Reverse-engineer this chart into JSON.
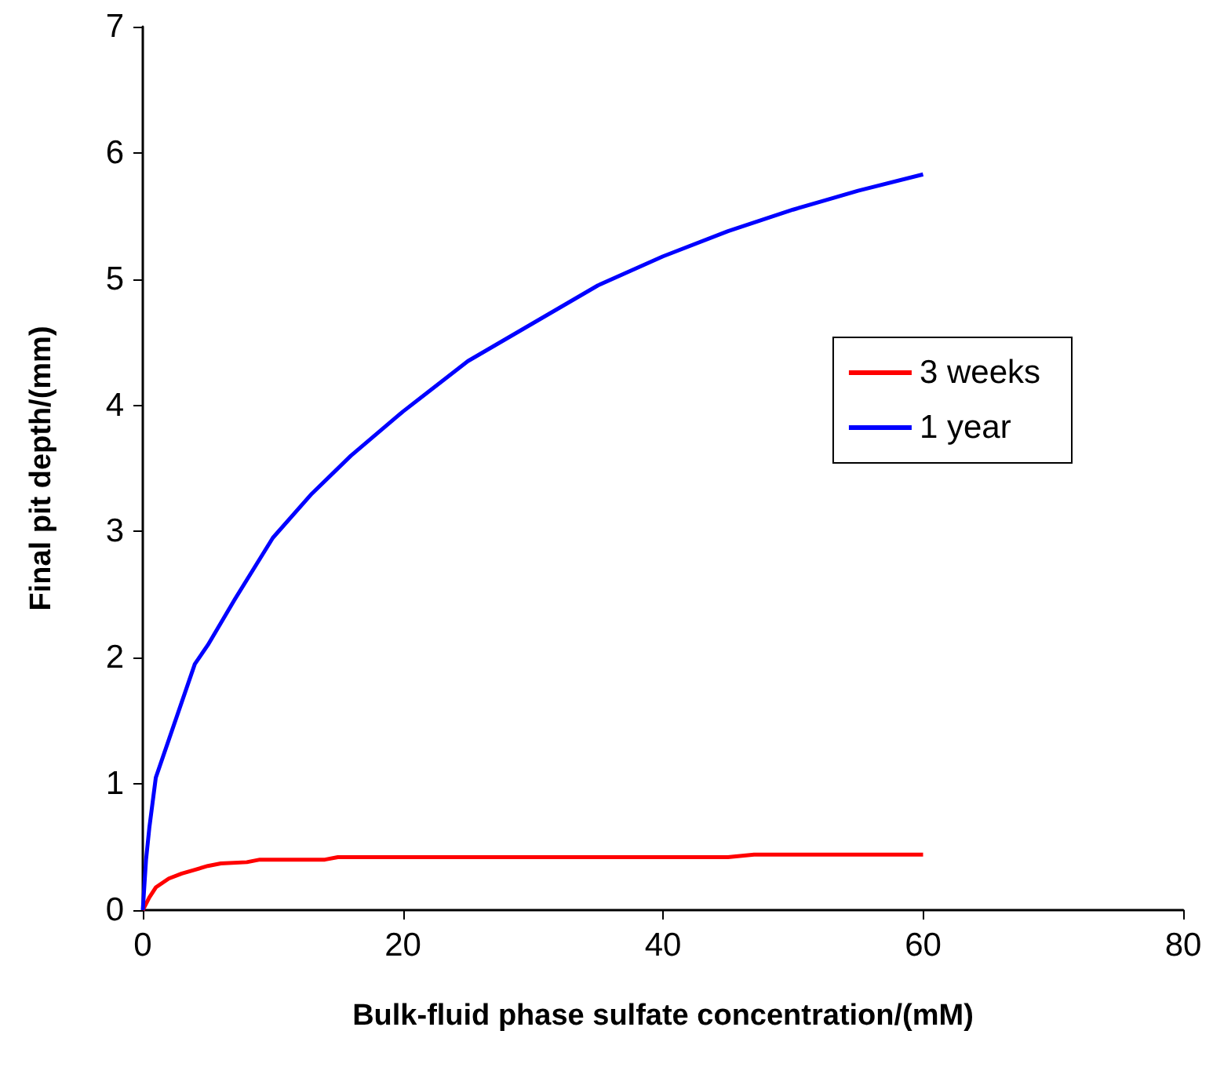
{
  "chart_data": {
    "type": "line",
    "xlabel": "Bulk-fluid phase sulfate concentration/(mM)",
    "ylabel": "Final pit depth/(mm)",
    "xlim": [
      0,
      80
    ],
    "xticks": [
      0,
      20,
      40,
      60,
      80
    ],
    "ylim": [
      0,
      7
    ],
    "yticks": [
      0,
      1,
      2,
      3,
      4,
      5,
      6,
      7
    ],
    "grid": false,
    "legend": "right",
    "marker": "none",
    "line_style": "solid",
    "series": [
      {
        "name": "3 weeks",
        "color": "#ff0000",
        "x": [
          0,
          0.5,
          1,
          2,
          3,
          4,
          5,
          6,
          8,
          9,
          14,
          15,
          30,
          45,
          47,
          56,
          60
        ],
        "values": [
          0,
          0.1,
          0.18,
          0.25,
          0.29,
          0.32,
          0.35,
          0.37,
          0.38,
          0.4,
          0.4,
          0.42,
          0.42,
          0.42,
          0.44,
          0.44,
          0.44
        ]
      },
      {
        "name": "1 year",
        "color": "#0000ff",
        "x": [
          0,
          0.25,
          0.5,
          1,
          2,
          3,
          4,
          5,
          7,
          10,
          13,
          16,
          20,
          25,
          30,
          35,
          40,
          45,
          50,
          55,
          60
        ],
        "values": [
          0,
          0.4,
          0.65,
          1.05,
          1.35,
          1.65,
          1.95,
          2.1,
          2.45,
          2.95,
          3.3,
          3.6,
          3.95,
          4.35,
          4.65,
          4.95,
          5.18,
          5.38,
          5.55,
          5.7,
          5.83
        ]
      }
    ]
  }
}
